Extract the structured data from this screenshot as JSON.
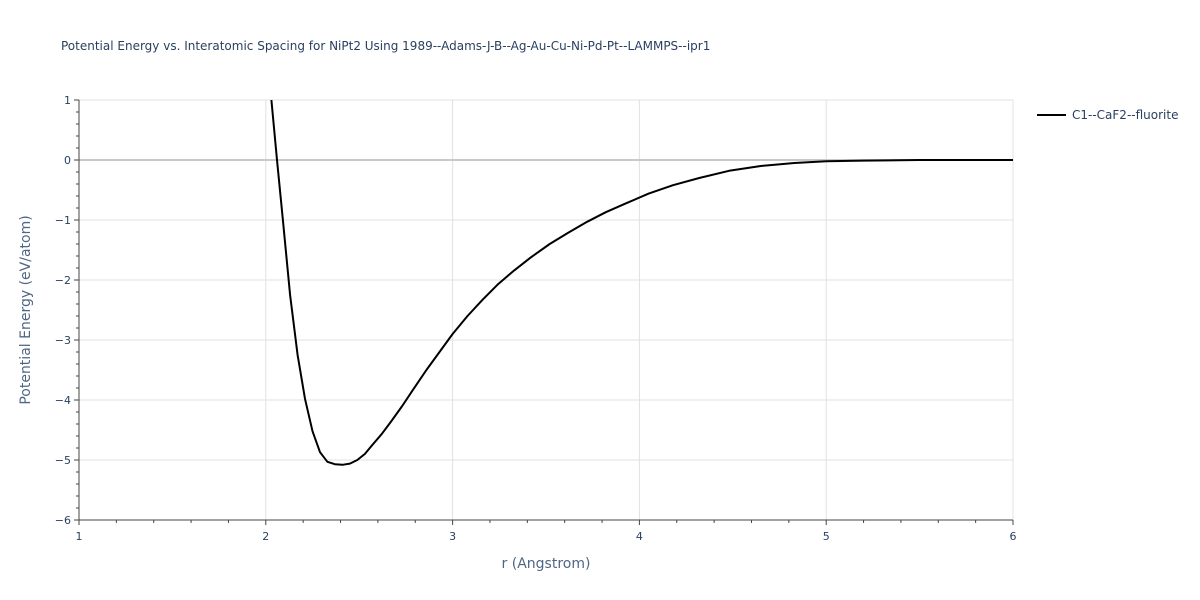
{
  "chart_data": {
    "type": "line",
    "title": "Potential Energy vs. Interatomic Spacing for NiPt2 Using 1989--Adams-J-B--Ag-Au-Cu-Ni-Pd-Pt--LAMMPS--ipr1",
    "xlabel": "r (Angstrom)",
    "ylabel": "Potential Energy (eV/atom)",
    "xlim": [
      1,
      6
    ],
    "ylim": [
      -6,
      1
    ],
    "x_ticks": [
      1,
      2,
      3,
      4,
      5,
      6
    ],
    "y_ticks": [
      1,
      0,
      -1,
      -2,
      -3,
      -4,
      -5,
      -6
    ],
    "x_tick_labels": [
      "1",
      "2",
      "3",
      "4",
      "5",
      "6"
    ],
    "y_tick_labels": [
      "1",
      "0",
      "−1",
      "−2",
      "−3",
      "−4",
      "−5",
      "−6"
    ],
    "grid": true,
    "legend_position": "top-right",
    "series": [
      {
        "name": "C1--CaF2--fluorite",
        "color": "#000000",
        "x": [
          2.03,
          2.06,
          2.09,
          2.13,
          2.17,
          2.21,
          2.25,
          2.29,
          2.33,
          2.37,
          2.41,
          2.45,
          2.49,
          2.53,
          2.57,
          2.62,
          2.67,
          2.73,
          2.79,
          2.86,
          2.93,
          3.0,
          3.08,
          3.16,
          3.24,
          3.33,
          3.42,
          3.52,
          3.62,
          3.72,
          3.82,
          3.93,
          4.05,
          4.18,
          4.32,
          4.48,
          4.65,
          4.83,
          5.0,
          5.2,
          5.5,
          6.0
        ],
        "values": [
          1.0,
          0.0,
          -0.95,
          -2.25,
          -3.25,
          -3.98,
          -4.52,
          -4.87,
          -5.03,
          -5.07,
          -5.08,
          -5.06,
          -5.0,
          -4.9,
          -4.75,
          -4.57,
          -4.36,
          -4.1,
          -3.82,
          -3.5,
          -3.2,
          -2.9,
          -2.6,
          -2.33,
          -2.08,
          -1.84,
          -1.62,
          -1.4,
          -1.21,
          -1.03,
          -0.87,
          -0.72,
          -0.56,
          -0.42,
          -0.3,
          -0.18,
          -0.1,
          -0.05,
          -0.02,
          -0.01,
          0.0,
          0.0
        ]
      }
    ]
  }
}
